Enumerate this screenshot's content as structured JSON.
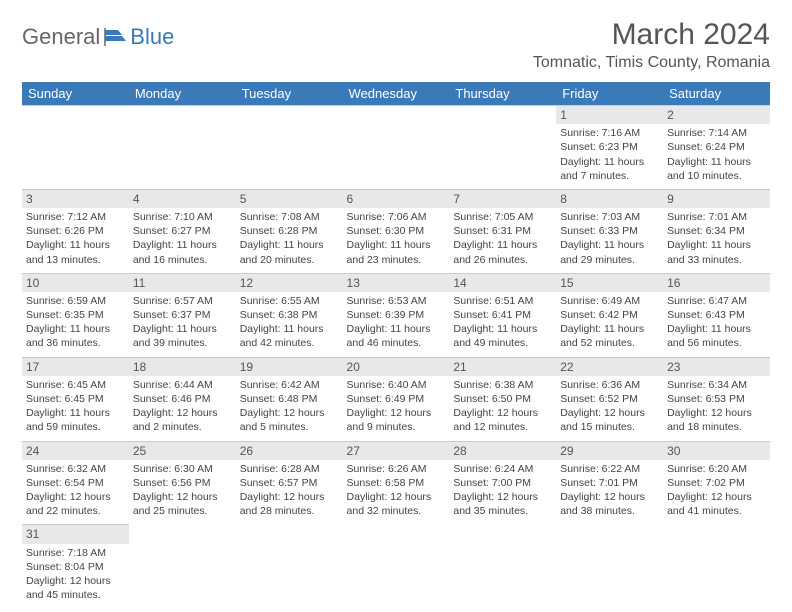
{
  "logo": {
    "word1": "General",
    "word2": "Blue"
  },
  "title": {
    "month": "March 2024",
    "location": "Tomnatic, Timis County, Romania"
  },
  "headers": [
    "Sunday",
    "Monday",
    "Tuesday",
    "Wednesday",
    "Thursday",
    "Friday",
    "Saturday"
  ],
  "colors": {
    "header_bg": "#3a7ab8",
    "daynum_bg": "#e8e8e8"
  },
  "weeks": [
    [
      null,
      null,
      null,
      null,
      null,
      {
        "n": "1",
        "sr": "7:16 AM",
        "ss": "6:23 PM",
        "dl": "11 hours and 7 minutes."
      },
      {
        "n": "2",
        "sr": "7:14 AM",
        "ss": "6:24 PM",
        "dl": "11 hours and 10 minutes."
      }
    ],
    [
      {
        "n": "3",
        "sr": "7:12 AM",
        "ss": "6:26 PM",
        "dl": "11 hours and 13 minutes."
      },
      {
        "n": "4",
        "sr": "7:10 AM",
        "ss": "6:27 PM",
        "dl": "11 hours and 16 minutes."
      },
      {
        "n": "5",
        "sr": "7:08 AM",
        "ss": "6:28 PM",
        "dl": "11 hours and 20 minutes."
      },
      {
        "n": "6",
        "sr": "7:06 AM",
        "ss": "6:30 PM",
        "dl": "11 hours and 23 minutes."
      },
      {
        "n": "7",
        "sr": "7:05 AM",
        "ss": "6:31 PM",
        "dl": "11 hours and 26 minutes."
      },
      {
        "n": "8",
        "sr": "7:03 AM",
        "ss": "6:33 PM",
        "dl": "11 hours and 29 minutes."
      },
      {
        "n": "9",
        "sr": "7:01 AM",
        "ss": "6:34 PM",
        "dl": "11 hours and 33 minutes."
      }
    ],
    [
      {
        "n": "10",
        "sr": "6:59 AM",
        "ss": "6:35 PM",
        "dl": "11 hours and 36 minutes."
      },
      {
        "n": "11",
        "sr": "6:57 AM",
        "ss": "6:37 PM",
        "dl": "11 hours and 39 minutes."
      },
      {
        "n": "12",
        "sr": "6:55 AM",
        "ss": "6:38 PM",
        "dl": "11 hours and 42 minutes."
      },
      {
        "n": "13",
        "sr": "6:53 AM",
        "ss": "6:39 PM",
        "dl": "11 hours and 46 minutes."
      },
      {
        "n": "14",
        "sr": "6:51 AM",
        "ss": "6:41 PM",
        "dl": "11 hours and 49 minutes."
      },
      {
        "n": "15",
        "sr": "6:49 AM",
        "ss": "6:42 PM",
        "dl": "11 hours and 52 minutes."
      },
      {
        "n": "16",
        "sr": "6:47 AM",
        "ss": "6:43 PM",
        "dl": "11 hours and 56 minutes."
      }
    ],
    [
      {
        "n": "17",
        "sr": "6:45 AM",
        "ss": "6:45 PM",
        "dl": "11 hours and 59 minutes."
      },
      {
        "n": "18",
        "sr": "6:44 AM",
        "ss": "6:46 PM",
        "dl": "12 hours and 2 minutes."
      },
      {
        "n": "19",
        "sr": "6:42 AM",
        "ss": "6:48 PM",
        "dl": "12 hours and 5 minutes."
      },
      {
        "n": "20",
        "sr": "6:40 AM",
        "ss": "6:49 PM",
        "dl": "12 hours and 9 minutes."
      },
      {
        "n": "21",
        "sr": "6:38 AM",
        "ss": "6:50 PM",
        "dl": "12 hours and 12 minutes."
      },
      {
        "n": "22",
        "sr": "6:36 AM",
        "ss": "6:52 PM",
        "dl": "12 hours and 15 minutes."
      },
      {
        "n": "23",
        "sr": "6:34 AM",
        "ss": "6:53 PM",
        "dl": "12 hours and 18 minutes."
      }
    ],
    [
      {
        "n": "24",
        "sr": "6:32 AM",
        "ss": "6:54 PM",
        "dl": "12 hours and 22 minutes."
      },
      {
        "n": "25",
        "sr": "6:30 AM",
        "ss": "6:56 PM",
        "dl": "12 hours and 25 minutes."
      },
      {
        "n": "26",
        "sr": "6:28 AM",
        "ss": "6:57 PM",
        "dl": "12 hours and 28 minutes."
      },
      {
        "n": "27",
        "sr": "6:26 AM",
        "ss": "6:58 PM",
        "dl": "12 hours and 32 minutes."
      },
      {
        "n": "28",
        "sr": "6:24 AM",
        "ss": "7:00 PM",
        "dl": "12 hours and 35 minutes."
      },
      {
        "n": "29",
        "sr": "6:22 AM",
        "ss": "7:01 PM",
        "dl": "12 hours and 38 minutes."
      },
      {
        "n": "30",
        "sr": "6:20 AM",
        "ss": "7:02 PM",
        "dl": "12 hours and 41 minutes."
      }
    ],
    [
      {
        "n": "31",
        "sr": "7:18 AM",
        "ss": "8:04 PM",
        "dl": "12 hours and 45 minutes."
      },
      null,
      null,
      null,
      null,
      null,
      null
    ]
  ],
  "labels": {
    "sunrise": "Sunrise: ",
    "sunset": "Sunset: ",
    "daylight": "Daylight: "
  }
}
